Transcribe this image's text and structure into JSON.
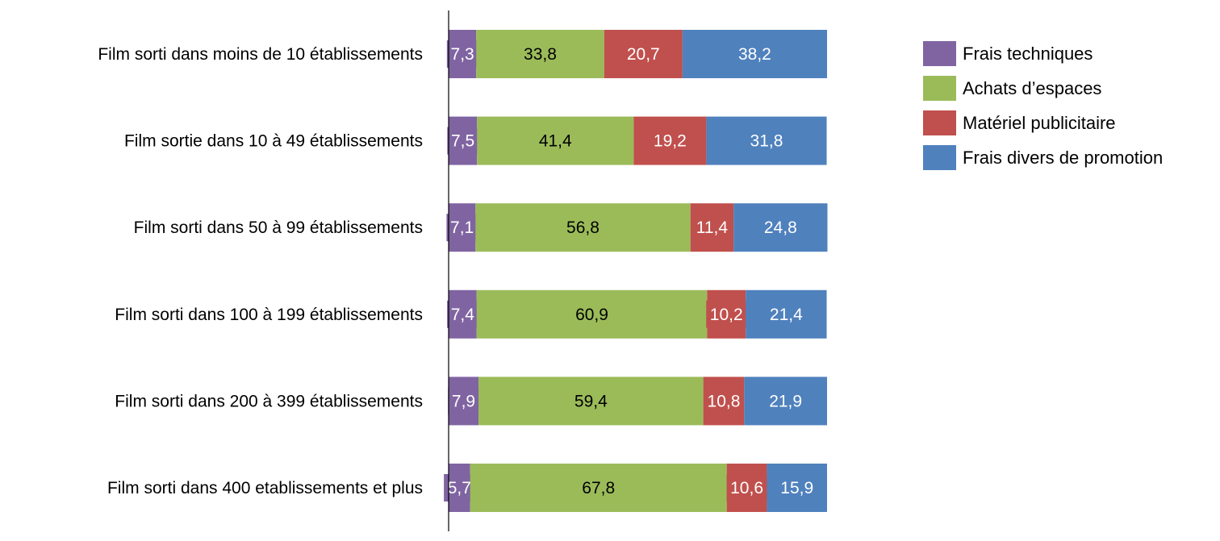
{
  "chart_data": {
    "type": "bar",
    "orientation": "horizontal",
    "stacked": true,
    "title": "",
    "xlabel": "",
    "ylabel": "",
    "xlim": [
      0,
      100
    ],
    "grid": false,
    "legend_position": "top-right",
    "categories": [
      "Film sorti dans moins de 10 établissements",
      "Film sortie dans 10 à 49 établissements",
      "Film sorti dans 50 à 99 établissements",
      "Film sorti dans 100 à 199 établissements",
      "Film sorti dans 200 à 399 établissements",
      "Film sorti dans 400 etablissements  et plus"
    ],
    "series": [
      {
        "name": "Frais techniques",
        "color": "#8064a2",
        "label_color": "#ffffff",
        "values": [
          7.3,
          7.5,
          7.1,
          7.4,
          7.9,
          5.7
        ],
        "labels": [
          "7,3",
          "7,5",
          "7,1",
          "7,4",
          "7,9",
          "5,7"
        ]
      },
      {
        "name": "Achats d’espaces",
        "color": "#9bbb59",
        "label_color": "#000000",
        "values": [
          33.8,
          41.4,
          56.8,
          60.9,
          59.4,
          67.8
        ],
        "labels": [
          "33,8",
          "41,4",
          "56,8",
          "60,9",
          "59,4",
          "67,8"
        ]
      },
      {
        "name": "Matériel publicitaire",
        "color": "#c0504d",
        "label_color": "#ffffff",
        "values": [
          20.7,
          19.2,
          11.4,
          10.2,
          10.8,
          10.6
        ],
        "labels": [
          "20,7",
          "19,2",
          "11,4",
          "10,2",
          "10,8",
          "10,6"
        ]
      },
      {
        "name": "Frais divers de promotion",
        "color": "#4f81bd",
        "label_color": "#ffffff",
        "values": [
          38.2,
          31.8,
          24.8,
          21.4,
          21.9,
          15.9
        ],
        "labels": [
          "38,2",
          "31,8",
          "24,8",
          "21,4",
          "21,9",
          "15,9"
        ]
      }
    ]
  }
}
